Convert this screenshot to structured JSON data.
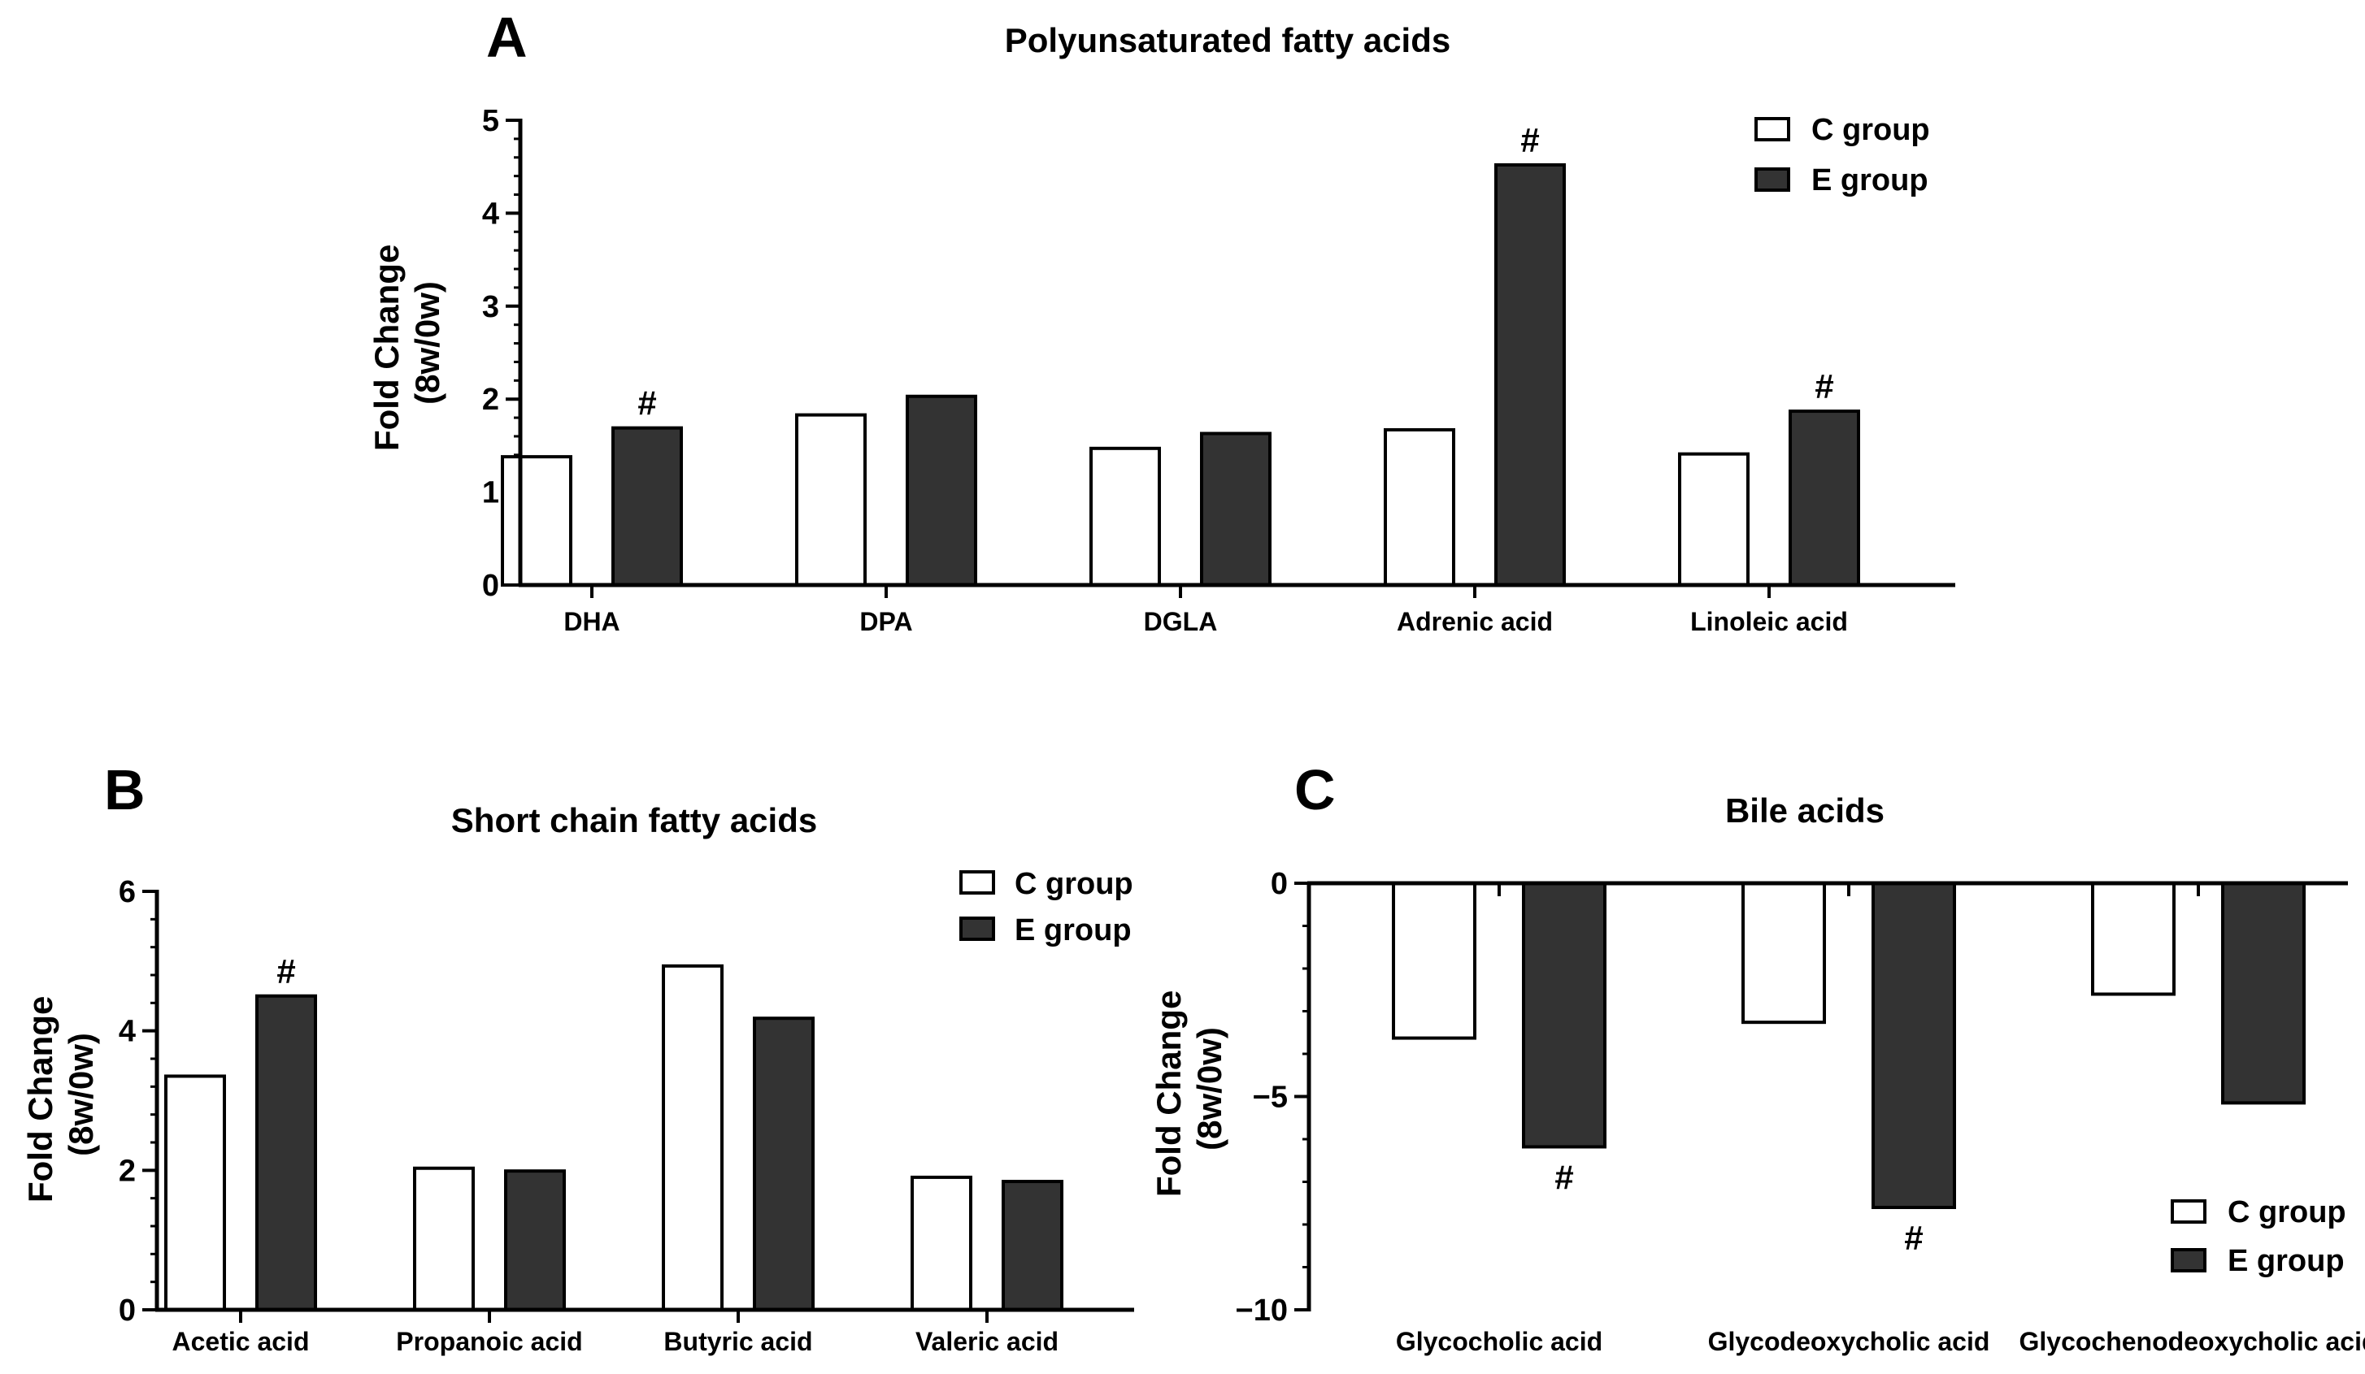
{
  "colors": {
    "c_fill": "#ffffff",
    "e_fill": "#333333",
    "stroke": "#000000"
  },
  "chart_data": [
    {
      "panel": "A",
      "type": "bar",
      "title": "Polyunsaturated fatty acids",
      "ylabel": "Fold Change (8w/0w)",
      "ylabel_lines": [
        "Fold Change",
        "(8w/0w)"
      ],
      "ylim": [
        0,
        5
      ],
      "yticks": [
        0,
        1,
        2,
        3,
        4,
        5
      ],
      "ytick_labels": [
        "0",
        "1",
        "2",
        "3",
        "4",
        "5"
      ],
      "categories": [
        "DHA",
        "DPA",
        "DGLA",
        "Adrenic acid",
        "Linoleic acid"
      ],
      "series": [
        {
          "name": "C group",
          "values": [
            1.38,
            1.83,
            1.47,
            1.67,
            1.41
          ]
        },
        {
          "name": "E group",
          "values": [
            1.69,
            2.03,
            1.63,
            4.52,
            1.87
          ]
        }
      ],
      "significance": [
        {
          "category": "DHA",
          "series": "E group",
          "label": "#"
        },
        {
          "category": "Adrenic acid",
          "series": "E group",
          "label": "#"
        },
        {
          "category": "Linoleic acid",
          "series": "E group",
          "label": "#"
        }
      ],
      "legend": {
        "position": "top-right",
        "entries": [
          "C group",
          "E group"
        ]
      }
    },
    {
      "panel": "B",
      "type": "bar",
      "title": "Short chain fatty acids",
      "ylabel": "Fold Change (8w/0w)",
      "ylabel_lines": [
        "Fold Change",
        "(8w/0w)"
      ],
      "ylim": [
        0,
        6
      ],
      "yticks": [
        0,
        2,
        4,
        6
      ],
      "ytick_labels": [
        "0",
        "2",
        "4",
        "6"
      ],
      "categories": [
        "Acetic acid",
        "Propanoic acid",
        "Butyric acid",
        "Valeric acid"
      ],
      "series": [
        {
          "name": "C group",
          "values": [
            3.35,
            2.03,
            4.93,
            1.9
          ]
        },
        {
          "name": "E group",
          "values": [
            4.5,
            1.99,
            4.18,
            1.84
          ]
        }
      ],
      "significance": [
        {
          "category": "Acetic acid",
          "series": "E group",
          "label": "#"
        }
      ],
      "legend": {
        "position": "top-right",
        "entries": [
          "C group",
          "E group"
        ]
      }
    },
    {
      "panel": "C",
      "type": "bar",
      "title": "Bile acids",
      "ylabel": "Fold Change (8w/0w)",
      "ylabel_lines": [
        "Fold Change",
        "(8w/0w)"
      ],
      "ylim": [
        -10,
        0
      ],
      "yticks": [
        -10,
        -5,
        0
      ],
      "ytick_labels": [
        "−10",
        "−5",
        "0"
      ],
      "categories": [
        "Glycocholic acid",
        "Glycodeoxycholic acid",
        "Glycochenodeoxycholic acid"
      ],
      "series": [
        {
          "name": "C group",
          "values": [
            -3.63,
            -3.26,
            -2.6
          ]
        },
        {
          "name": "E group",
          "values": [
            -6.18,
            -7.6,
            -5.15
          ]
        }
      ],
      "significance": [
        {
          "category": "Glycocholic acid",
          "series": "E group",
          "label": "#"
        },
        {
          "category": "Glycodeoxycholic acid",
          "series": "E group",
          "label": "#"
        }
      ],
      "legend": {
        "position": "bottom-right",
        "entries": [
          "C group",
          "E group"
        ]
      }
    }
  ]
}
